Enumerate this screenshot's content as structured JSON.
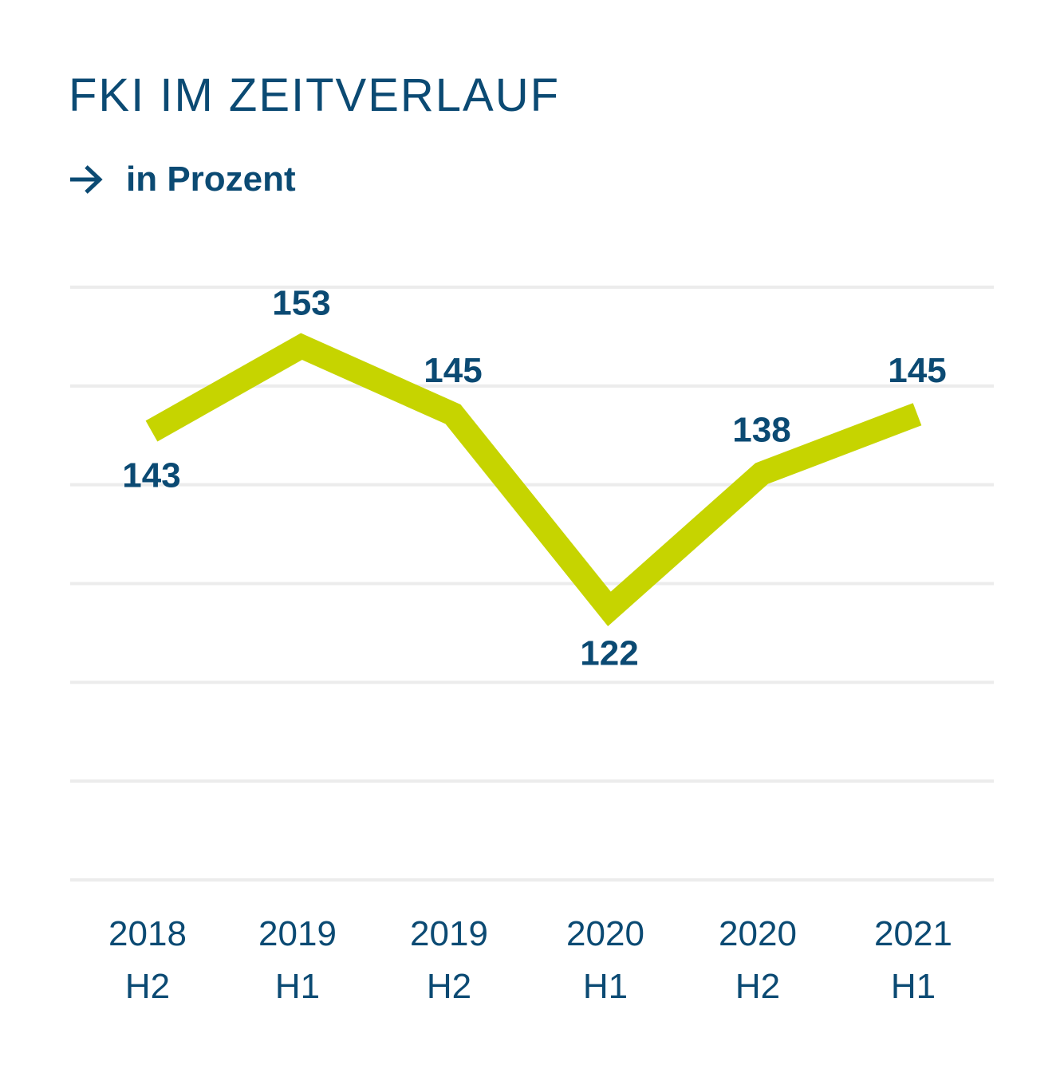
{
  "header": {
    "title": "FKI IM ZEITVERLAUF",
    "subtitle": "in Prozent"
  },
  "icons": {
    "subtitle_icon": "arrow-right-icon"
  },
  "colors": {
    "line": "#c6d400",
    "text": "#0b4a73",
    "grid": "#ececec"
  },
  "chart_data": {
    "type": "line",
    "title": "FKI IM ZEITVERLAUF",
    "subtitle": "in Prozent",
    "categories": [
      [
        "2018",
        "H2"
      ],
      [
        "2019",
        "H1"
      ],
      [
        "2019",
        "H2"
      ],
      [
        "2020",
        "H1"
      ],
      [
        "2020",
        "H2"
      ],
      [
        "2021",
        "H1"
      ]
    ],
    "series": [
      {
        "values": [
          143,
          153,
          145,
          122,
          138,
          145
        ]
      }
    ],
    "grid": true,
    "gridlines": 7,
    "ylim": [
      90,
      160
    ]
  }
}
